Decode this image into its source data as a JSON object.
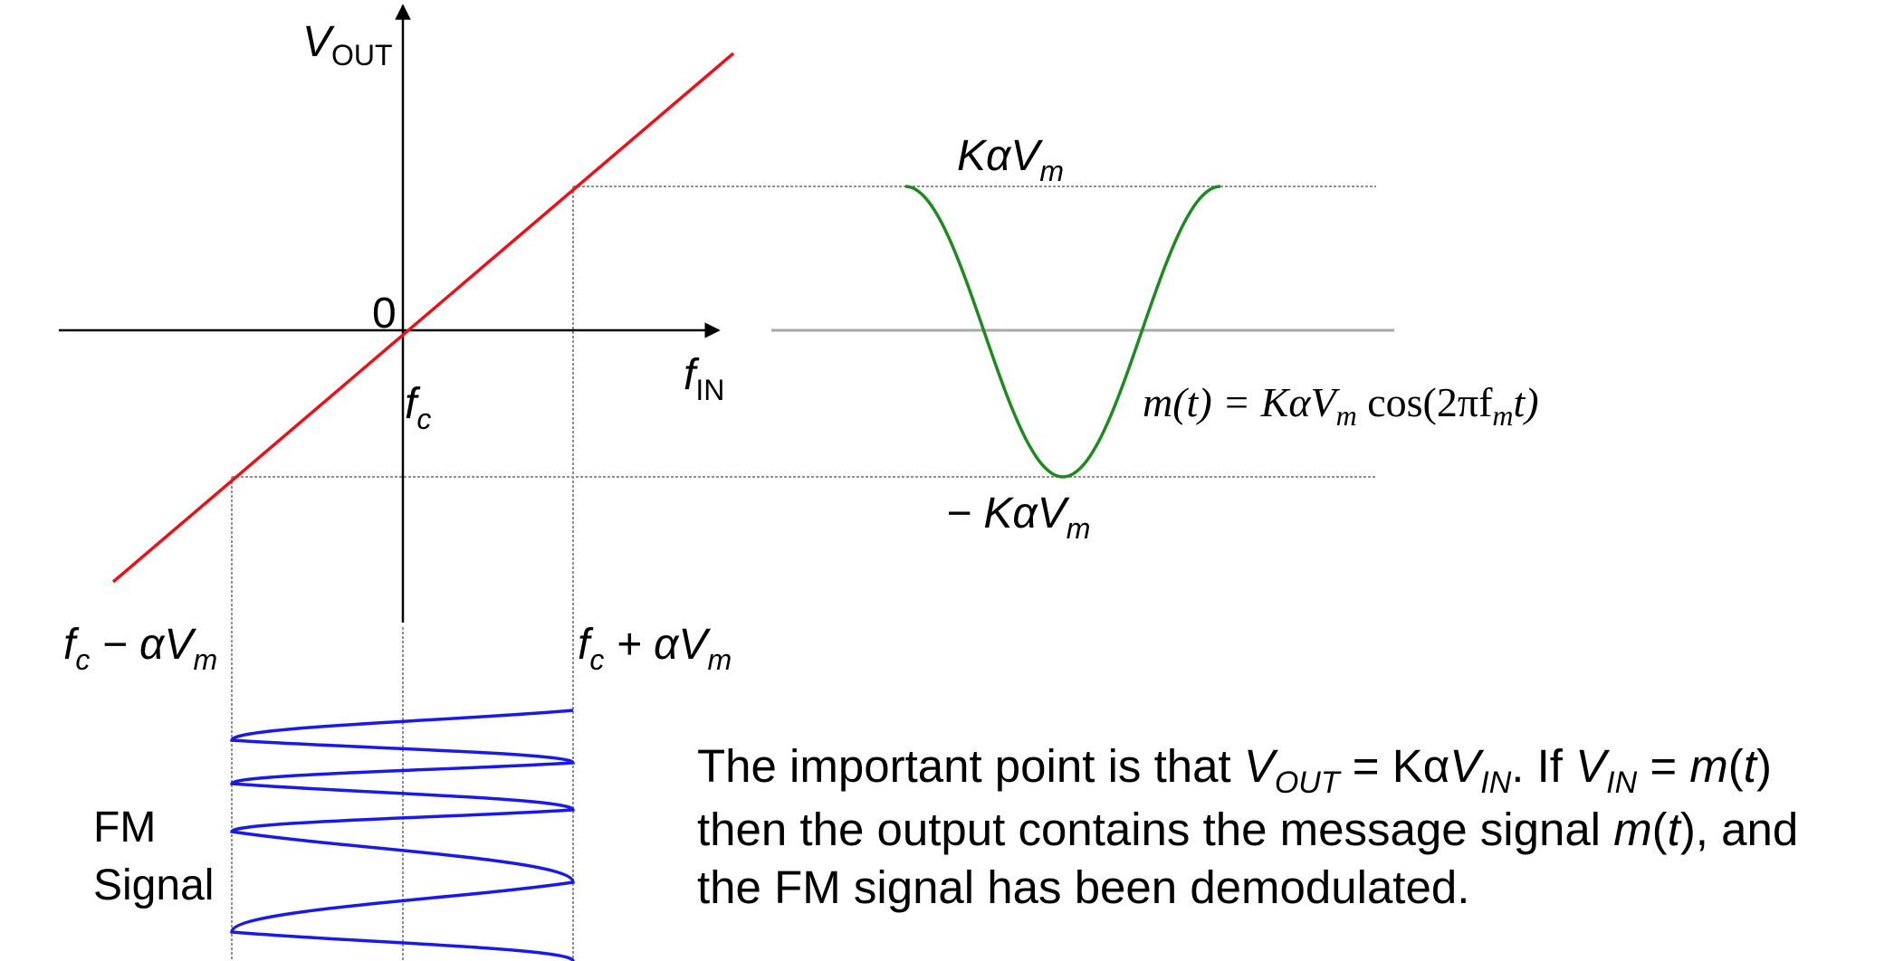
{
  "colors": {
    "transfer_line": "#e8121b",
    "demod_curve": "#1f8a1f",
    "fm_signal": "#1a1ae8",
    "axes": "#000000",
    "guides": "#909090",
    "zero_line": "#a8a8a8"
  },
  "axes": {
    "y_label": "V",
    "y_label_sub": "OUT",
    "x_label": "f",
    "x_label_sub": "IN",
    "origin": "0",
    "center_label": "f",
    "center_label_sub": "c"
  },
  "freq_labels": {
    "low_f": "f",
    "low_f_sub": "c",
    "low_rest": " − αV",
    "low_rest_sub": "m",
    "high_f": "f",
    "high_f_sub": "c",
    "high_rest": " + αV",
    "high_rest_sub": "m"
  },
  "output_labels": {
    "max_prefix": "Kα",
    "max_v": "V",
    "max_v_sub": "m",
    "min_prefix": "− Kα",
    "min_v": "V",
    "min_v_sub": "m"
  },
  "equation": {
    "lhs": "m(t) = KαV",
    "lhs_sub": "m",
    "mid": " cos(2πf",
    "mid_sub": "m",
    "rhs": "t)"
  },
  "fm_label": {
    "line1": "FM",
    "line2": "Signal"
  },
  "caption": {
    "l1_a": "The important point is that ",
    "l1_v1": "V",
    "l1_v1_sub": "OUT",
    "l1_b": " = Kα",
    "l1_v2": "V",
    "l1_v2_sub": "IN",
    "l1_c": ". If ",
    "l1_v3": "V",
    "l1_v3_sub": "IN",
    "l1_d": " = ",
    "l1_m": "m",
    "l1_e": "(",
    "l1_t": "t",
    "l1_f": ")",
    "l2_a": "then the output contains the message signal ",
    "l2_m": "m",
    "l2_b": "(",
    "l2_t": "t",
    "l2_c": "), and",
    "l3": "the FM signal has been demodulated."
  }
}
